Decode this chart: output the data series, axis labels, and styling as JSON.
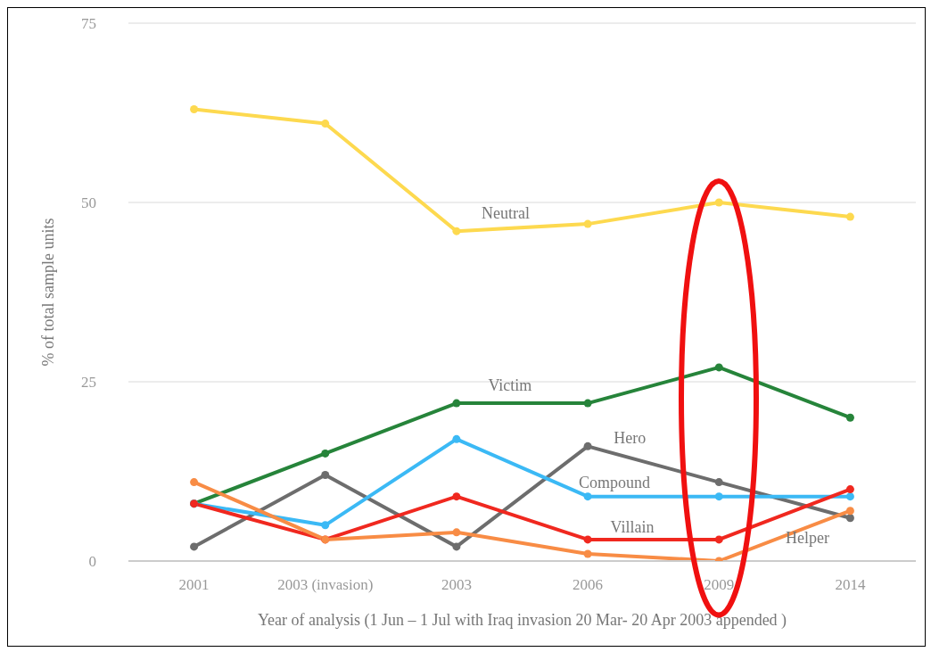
{
  "chart_data": {
    "type": "line",
    "xlabel": "Year of analysis (1 Jun – 1 Jul with Iraq invasion 20 Mar- 20 Apr 2003 appended )",
    "ylabel": "% of total sample units",
    "categories": [
      "2001",
      "2003 (invasion)",
      "2003",
      "2006",
      "2009",
      "2014"
    ],
    "series": [
      {
        "name": "Neutral",
        "color": "#fdd94f",
        "values": [
          63,
          61,
          46,
          47,
          50,
          48
        ]
      },
      {
        "name": "Victim",
        "color": "#26843a",
        "values": [
          8,
          15,
          22,
          22,
          27,
          20
        ]
      },
      {
        "name": "Hero",
        "color": "#6d6d6d",
        "values": [
          2,
          12,
          2,
          16,
          11,
          6
        ]
      },
      {
        "name": "Compound",
        "color": "#3bb9f5",
        "values": [
          8,
          5,
          17,
          9,
          9,
          9
        ]
      },
      {
        "name": "Villain",
        "color": "#f0281f",
        "values": [
          8,
          3,
          9,
          3,
          3,
          10
        ]
      },
      {
        "name": "Helper",
        "color": "#f88c45",
        "values": [
          11,
          3,
          4,
          1,
          0,
          7
        ]
      }
    ],
    "ylim": [
      0,
      75
    ],
    "yticks": [
      0,
      25,
      50,
      75
    ],
    "grid": "y",
    "legend": false,
    "marker": "circle",
    "line_style": "solid"
  }
}
